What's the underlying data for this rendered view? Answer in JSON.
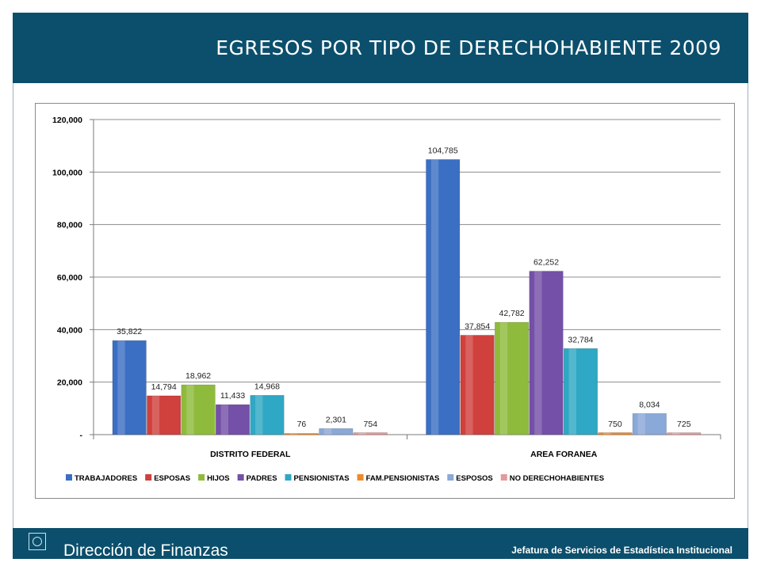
{
  "header": {
    "title": "EGRESOS POR TIPO DE DERECHOHABIENTE 2009"
  },
  "footer": {
    "left_text": "Dirección de Finanzas",
    "right_text": "Jefatura de Servicios de Estadística Institucional"
  },
  "colors": {
    "band": "#0b4f6c",
    "series": [
      "#3b6fc4",
      "#d0403c",
      "#8fbb3c",
      "#7450a8",
      "#2ea8c4",
      "#ee8a2a",
      "#8aa8d8",
      "#e49a9a"
    ]
  },
  "chart_data": {
    "type": "bar",
    "categories": [
      "DISTRITO FEDERAL",
      "AREA FORANEA"
    ],
    "series": [
      {
        "name": "TRABAJADORES",
        "values": [
          35822,
          104785
        ]
      },
      {
        "name": "ESPOSAS",
        "values": [
          14794,
          37854
        ]
      },
      {
        "name": "HIJOS",
        "values": [
          18962,
          42782
        ]
      },
      {
        "name": "PADRES",
        "values": [
          11433,
          62252
        ]
      },
      {
        "name": "PENSIONISTAS",
        "values": [
          14968,
          32784
        ]
      },
      {
        "name": "FAM.PENSIONISTAS",
        "values": [
          76,
          750
        ]
      },
      {
        "name": "ESPOSOS",
        "values": [
          2301,
          8034
        ]
      },
      {
        "name": "NO DERECHOHABIENTES",
        "values": [
          754,
          725
        ]
      }
    ],
    "data_labels": [
      [
        "35,822",
        "104,785"
      ],
      [
        "14,794",
        "37,854"
      ],
      [
        "18,962",
        "42,782"
      ],
      [
        "11,433",
        "62,252"
      ],
      [
        "14,968",
        "32,784"
      ],
      [
        "76",
        "750"
      ],
      [
        "2,301",
        "8,034"
      ],
      [
        "754",
        "725"
      ]
    ],
    "ylim": [
      0,
      120000
    ],
    "yticks": [
      0,
      20000,
      40000,
      60000,
      80000,
      100000,
      120000
    ],
    "ytick_labels": [
      "-",
      "20,000",
      "40,000",
      "60,000",
      "80,000",
      "100,000",
      "120,000"
    ],
    "grid": true,
    "legend_position": "bottom"
  }
}
